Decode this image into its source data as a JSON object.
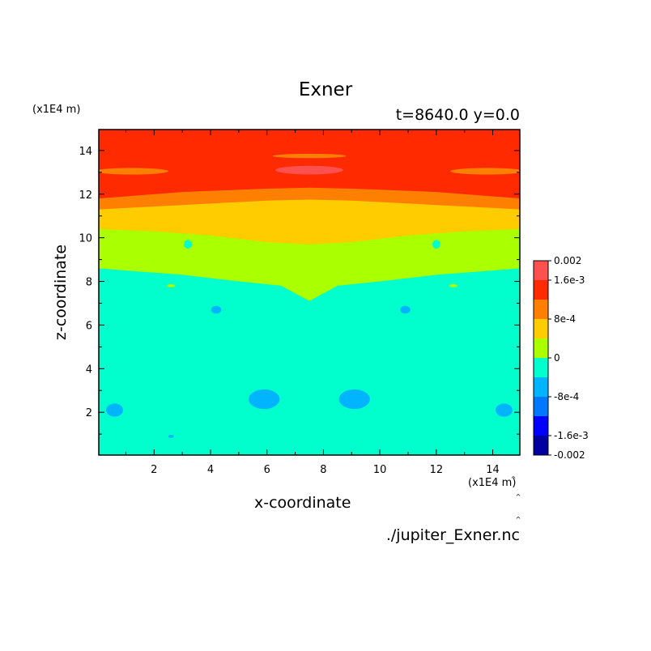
{
  "chart_data": {
    "type": "heatmap",
    "title": "Exner",
    "subtitle": "t=8640.0 y=0.0",
    "xlabel": "x-coordinate",
    "ylabel": "z-coordinate",
    "x_unit": "(x1E4 m)",
    "z_unit": "(x1E4 m)",
    "xlim": [
      0.04,
      14.96
    ],
    "ylim": [
      0.04,
      14.96
    ],
    "x_ticks": [
      2,
      4,
      6,
      8,
      10,
      12,
      14
    ],
    "y_ticks": [
      2,
      4,
      6,
      8,
      10,
      12,
      14
    ],
    "source_file": "./jupiter_Exner.nc",
    "colorbar": {
      "levels": [
        -0.002,
        -0.0016,
        -0.0012,
        -0.0008,
        -0.0004,
        0,
        0.0004,
        0.0008,
        0.0012,
        0.0016,
        0.002
      ],
      "colors": [
        "#0000a0",
        "#0000ff",
        "#0078ff",
        "#00b4ff",
        "#00ffcc",
        "#aaff00",
        "#ffcc00",
        "#ff8000",
        "#ff2a00",
        "#ff5050"
      ],
      "labels": [
        {
          "value": 0.002,
          "text": "0.002"
        },
        {
          "value": 0.0016,
          "text": "1.6e-3"
        },
        {
          "value": 0.0008,
          "text": "8e-4"
        },
        {
          "value": 0,
          "text": "0"
        },
        {
          "value": -0.0008,
          "text": "-8e-4"
        },
        {
          "value": -0.0016,
          "text": "-1.6e-3"
        },
        {
          "value": -0.002,
          "text": "-0.002"
        }
      ]
    },
    "bands": [
      {
        "range": [
          -0.0004,
          0
        ],
        "color": "#00ffcc",
        "z_top_profile": [
          [
            0.04,
            8.6
          ],
          [
            1,
            8.5
          ],
          [
            3,
            8.3
          ],
          [
            5,
            8.0
          ],
          [
            6.5,
            7.8
          ],
          [
            7.5,
            7.1
          ],
          [
            8.5,
            7.8
          ],
          [
            10,
            8.0
          ],
          [
            12,
            8.3
          ],
          [
            14,
            8.5
          ],
          [
            14.96,
            8.6
          ]
        ]
      },
      {
        "range": [
          0,
          0.0004
        ],
        "color": "#aaff00",
        "z_top_profile": [
          [
            0.04,
            10.4
          ],
          [
            2,
            10.3
          ],
          [
            4,
            10.1
          ],
          [
            6,
            9.8
          ],
          [
            7.5,
            9.7
          ],
          [
            9,
            9.8
          ],
          [
            11,
            10.1
          ],
          [
            13,
            10.3
          ],
          [
            14.96,
            10.4
          ]
        ]
      },
      {
        "range": [
          0.0004,
          0.0008
        ],
        "color": "#ffcc00",
        "z_top_profile": [
          [
            0.04,
            11.3
          ],
          [
            3,
            11.5
          ],
          [
            6,
            11.7
          ],
          [
            7.5,
            11.75
          ],
          [
            9,
            11.7
          ],
          [
            12,
            11.5
          ],
          [
            14.96,
            11.3
          ]
        ]
      },
      {
        "range": [
          0.0008,
          0.0012
        ],
        "color": "#ff8000",
        "z_top_profile": [
          [
            0.04,
            11.8
          ],
          [
            3,
            12.1
          ],
          [
            6,
            12.25
          ],
          [
            7.5,
            12.3
          ],
          [
            9,
            12.25
          ],
          [
            12,
            12.1
          ],
          [
            14.96,
            11.8
          ]
        ]
      },
      {
        "range": [
          0.0012,
          0.0016
        ],
        "color": "#ff2a00",
        "z_top_profile": [
          [
            0.04,
            14.96
          ],
          [
            14.96,
            14.96
          ]
        ]
      }
    ],
    "features": [
      {
        "kind": "min",
        "range": [
          -0.0008,
          -0.0004
        ],
        "color": "#00b4ff",
        "x": 0.6,
        "z": 2.1,
        "rx": 0.3,
        "rz": 0.3
      },
      {
        "kind": "min",
        "range": [
          -0.0008,
          -0.0004
        ],
        "color": "#00b4ff",
        "x": 5.9,
        "z": 2.6,
        "rx": 0.55,
        "rz": 0.45
      },
      {
        "kind": "min",
        "range": [
          -0.0008,
          -0.0004
        ],
        "color": "#00b4ff",
        "x": 9.1,
        "z": 2.6,
        "rx": 0.55,
        "rz": 0.45
      },
      {
        "kind": "min",
        "range": [
          -0.0008,
          -0.0004
        ],
        "color": "#00b4ff",
        "x": 14.4,
        "z": 2.1,
        "rx": 0.3,
        "rz": 0.3
      },
      {
        "kind": "min",
        "range": [
          -0.0008,
          -0.0004
        ],
        "color": "#00b4ff",
        "x": 4.2,
        "z": 6.7,
        "rx": 0.18,
        "rz": 0.18
      },
      {
        "kind": "min",
        "range": [
          -0.0008,
          -0.0004
        ],
        "color": "#00b4ff",
        "x": 10.9,
        "z": 6.7,
        "rx": 0.18,
        "rz": 0.18
      },
      {
        "kind": "min",
        "range": [
          -0.0008,
          -0.0004
        ],
        "color": "#00b4ff",
        "x": 2.6,
        "z": 0.9,
        "rx": 0.1,
        "rz": 0.07
      },
      {
        "kind": "min",
        "range": [
          -0.0004,
          0
        ],
        "color": "#00ffcc",
        "x": 3.2,
        "z": 9.7,
        "rx": 0.14,
        "rz": 0.2
      },
      {
        "kind": "min",
        "range": [
          -0.0004,
          0
        ],
        "color": "#00ffcc",
        "x": 12.0,
        "z": 9.7,
        "rx": 0.14,
        "rz": 0.2
      },
      {
        "kind": "max",
        "range": [
          0,
          0.0004
        ],
        "color": "#aaff00",
        "x": 2.6,
        "z": 7.8,
        "rx": 0.15,
        "rz": 0.07
      },
      {
        "kind": "max",
        "range": [
          0,
          0.0004
        ],
        "color": "#aaff00",
        "x": 12.6,
        "z": 7.8,
        "rx": 0.15,
        "rz": 0.07
      },
      {
        "kind": "max",
        "range": [
          0.0008,
          0.0012
        ],
        "color": "#ff8000",
        "x": 1.2,
        "z": 13.05,
        "rx": 1.3,
        "rz": 0.15
      },
      {
        "kind": "max",
        "range": [
          0.0008,
          0.0012
        ],
        "color": "#ff8000",
        "x": 13.8,
        "z": 13.05,
        "rx": 1.3,
        "rz": 0.15
      },
      {
        "kind": "max",
        "range": [
          0.0016,
          0.002
        ],
        "color": "#ff5050",
        "x": 7.5,
        "z": 13.1,
        "rx": 1.2,
        "rz": 0.2
      },
      {
        "kind": "max",
        "range": [
          0.0008,
          0.0012
        ],
        "color": "#ff8000",
        "x": 7.5,
        "z": 13.75,
        "rx": 1.3,
        "rz": 0.1
      }
    ]
  }
}
